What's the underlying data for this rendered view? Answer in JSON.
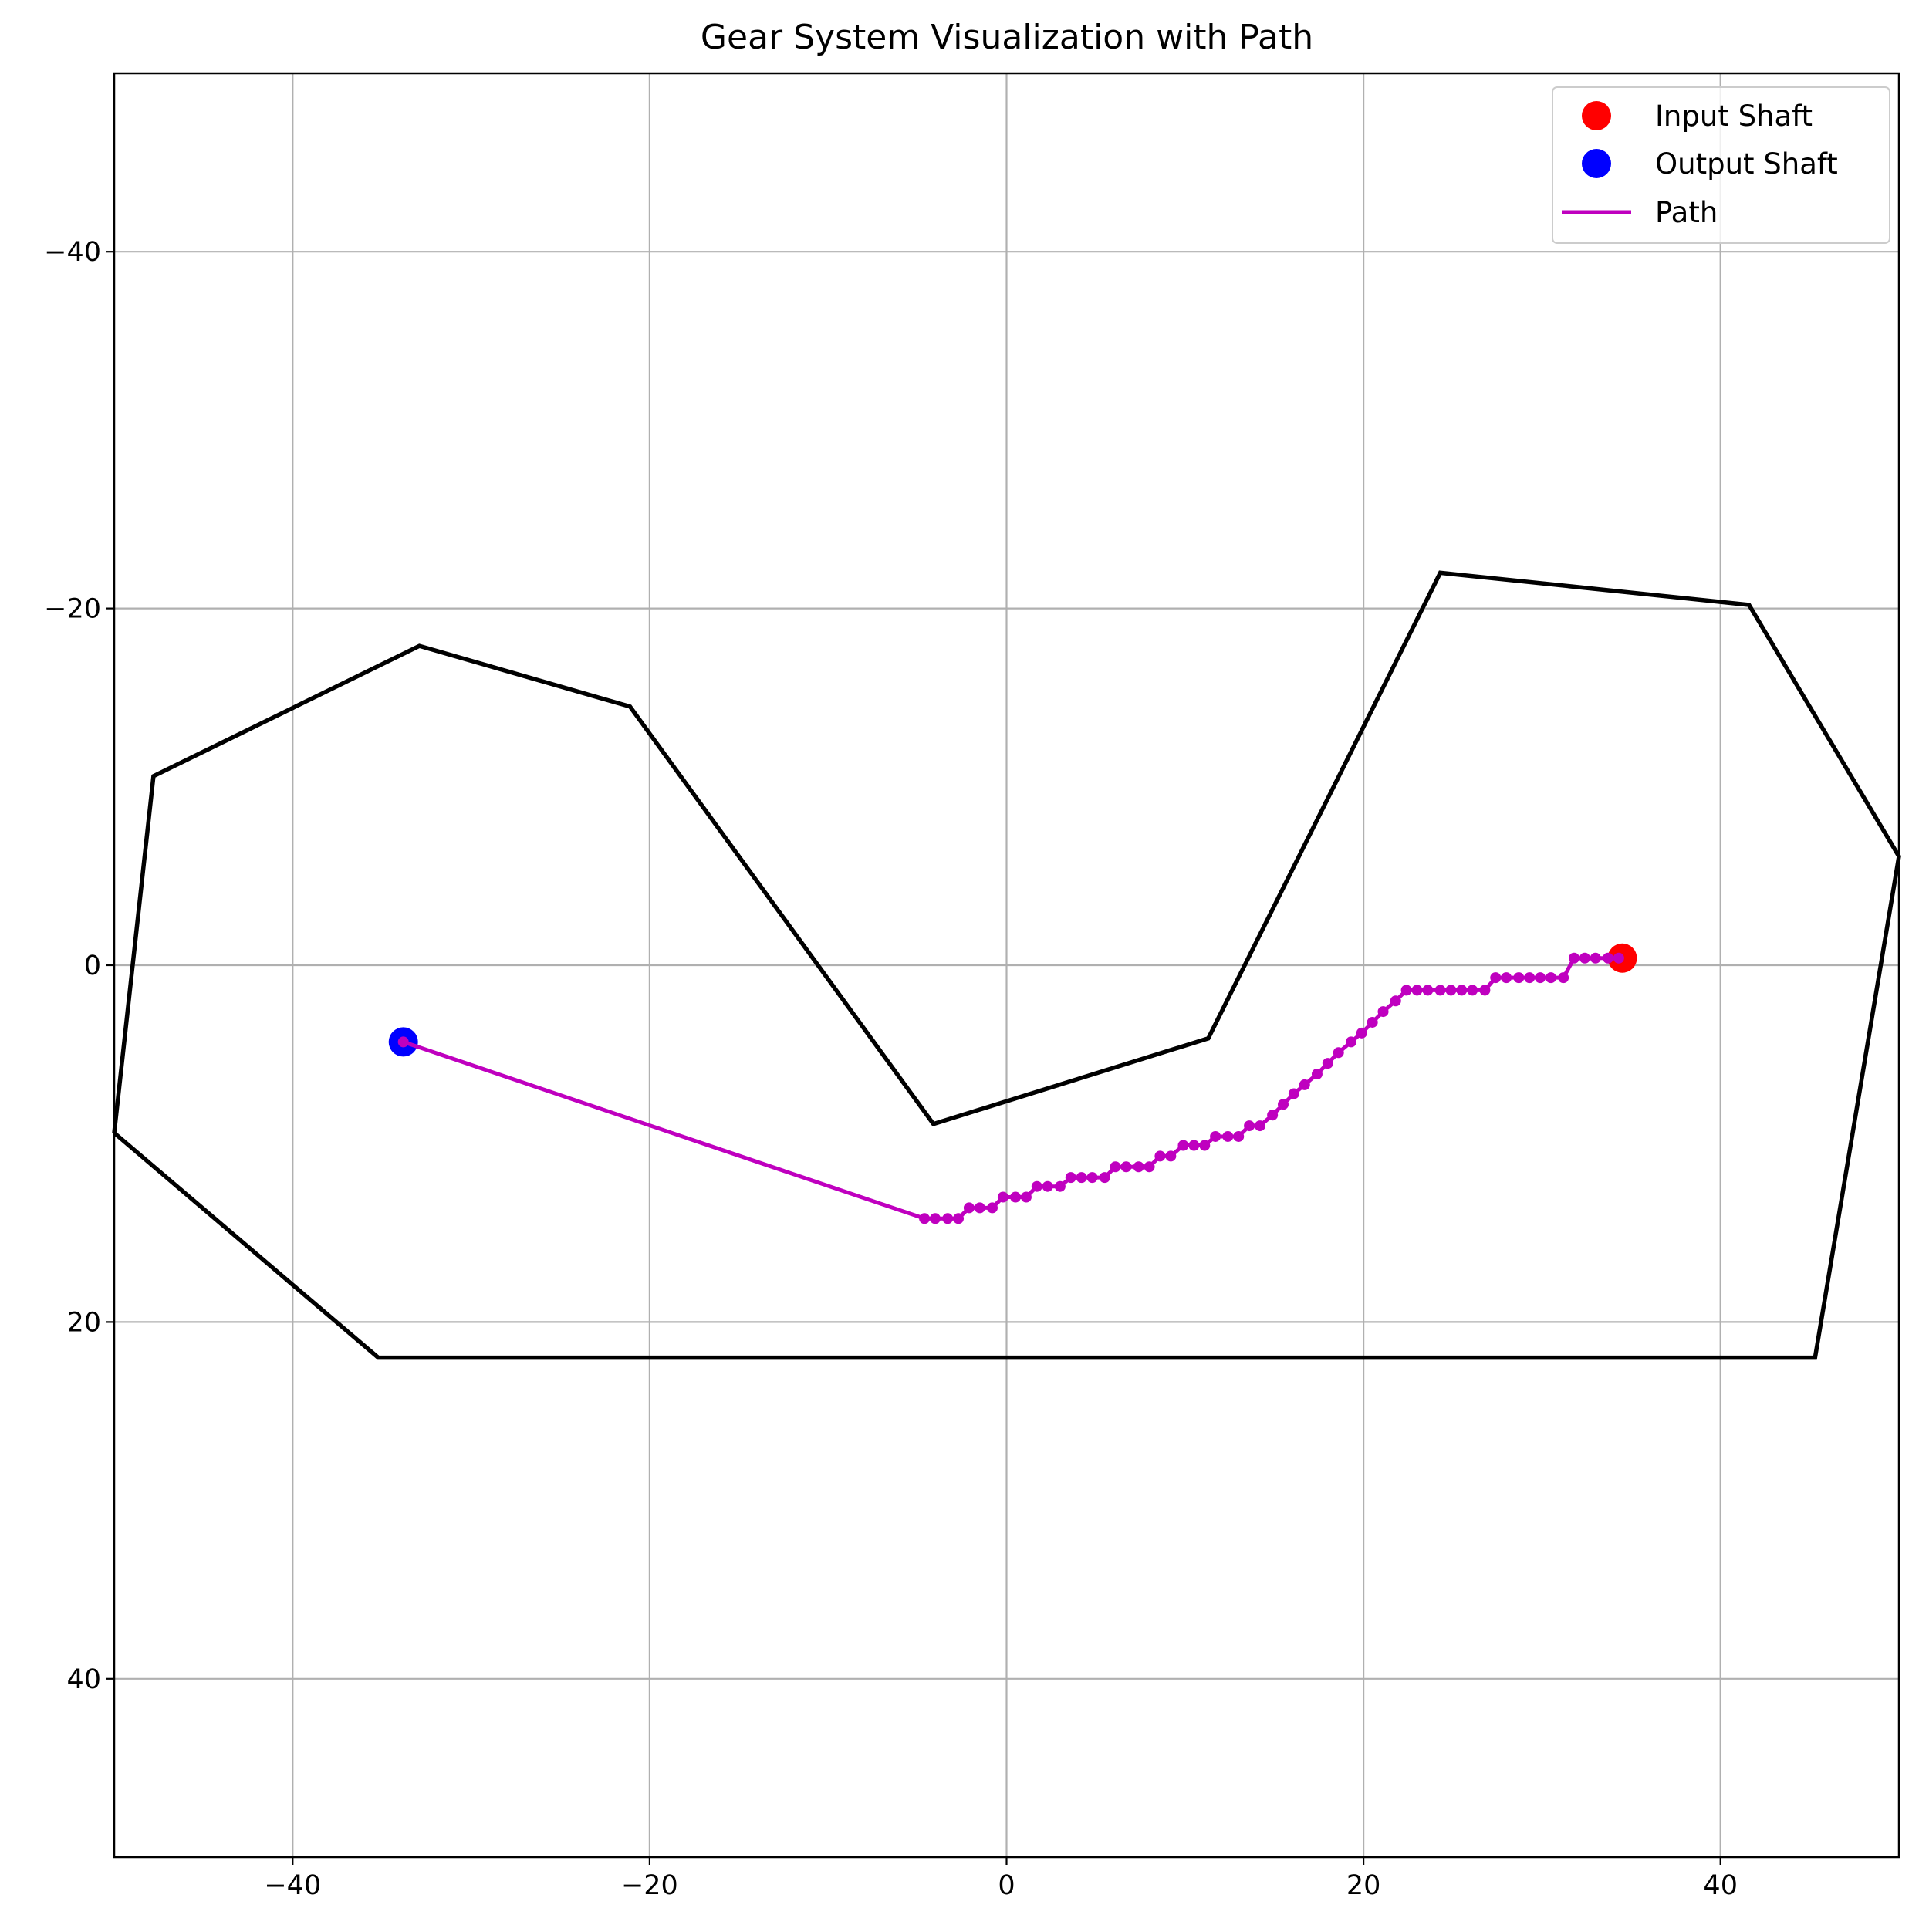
{
  "chart_data": {
    "type": "line",
    "title": "Gear System Visualization with Path",
    "xlabel": "",
    "ylabel": "",
    "xlim": [
      -50,
      50
    ],
    "ylim": [
      50,
      -50
    ],
    "y_axis_inverted": true,
    "grid": true,
    "legend_position": "top-right",
    "x_ticks": [
      -40,
      -20,
      0,
      20,
      40
    ],
    "y_ticks": [
      -40,
      -20,
      0,
      20,
      40
    ],
    "x_tick_labels": [
      "−40",
      "−20",
      "0",
      "20",
      "40"
    ],
    "y_tick_labels": [
      "−40",
      "−20",
      "0",
      "20",
      "40"
    ],
    "boundary": {
      "color": "#000000",
      "points": [
        [
          -50,
          9.4
        ],
        [
          -35.2,
          22
        ],
        [
          45.3,
          22
        ],
        [
          50,
          -6.1
        ],
        [
          41.6,
          -20.2
        ],
        [
          24.3,
          -22
        ],
        [
          11.3,
          4.1
        ],
        [
          -4.1,
          8.9
        ],
        [
          -21.1,
          -14.5
        ],
        [
          -32.9,
          -17.9
        ],
        [
          -47.8,
          -10.6
        ],
        [
          -50,
          9.4
        ]
      ]
    },
    "series": [
      {
        "name": "Input Shaft",
        "kind": "marker",
        "color": "#ff0000",
        "x": [
          34.5
        ],
        "y": [
          -0.4
        ]
      },
      {
        "name": "Output Shaft",
        "kind": "marker",
        "color": "#0000ff",
        "x": [
          -33.8
        ],
        "y": [
          4.3
        ]
      },
      {
        "name": "Path",
        "kind": "line",
        "color": "#bf00bf",
        "points": [
          [
            -33.8,
            4.3
          ],
          [
            -4.6,
            14.2
          ],
          [
            -4,
            14.2
          ],
          [
            -3.3,
            14.2
          ],
          [
            -2.7,
            14.2
          ],
          [
            -2.1,
            13.6
          ],
          [
            -1.5,
            13.6
          ],
          [
            -0.8,
            13.6
          ],
          [
            -0.2,
            13.0
          ],
          [
            0.5,
            13.0
          ],
          [
            1.1,
            13.0
          ],
          [
            1.7,
            12.4
          ],
          [
            2.3,
            12.4
          ],
          [
            3,
            12.4
          ],
          [
            3.6,
            11.9
          ],
          [
            4.2,
            11.9
          ],
          [
            4.8,
            11.9
          ],
          [
            5.5,
            11.9
          ],
          [
            6.1,
            11.3
          ],
          [
            6.7,
            11.3
          ],
          [
            7.4,
            11.3
          ],
          [
            8,
            11.3
          ],
          [
            8.6,
            10.7
          ],
          [
            9.2,
            10.7
          ],
          [
            9.9,
            10.1
          ],
          [
            10.5,
            10.1
          ],
          [
            11.1,
            10.1
          ],
          [
            11.7,
            9.6
          ],
          [
            12.4,
            9.6
          ],
          [
            13,
            9.6
          ],
          [
            13.6,
            9.0
          ],
          [
            14.2,
            9.0
          ],
          [
            14.9,
            8.4
          ],
          [
            15.5,
            7.8
          ],
          [
            16.1,
            7.2
          ],
          [
            16.7,
            6.7
          ],
          [
            17.4,
            6.1
          ],
          [
            18,
            5.5
          ],
          [
            18.6,
            4.9
          ],
          [
            19.3,
            4.3
          ],
          [
            19.9,
            3.8
          ],
          [
            20.5,
            3.2
          ],
          [
            21.1,
            2.6
          ],
          [
            21.8,
            2.0
          ],
          [
            22.4,
            1.4
          ],
          [
            23,
            1.4
          ],
          [
            23.6,
            1.4
          ],
          [
            24.3,
            1.4
          ],
          [
            24.9,
            1.4
          ],
          [
            25.5,
            1.4
          ],
          [
            26.1,
            1.4
          ],
          [
            26.8,
            1.4
          ],
          [
            27.4,
            0.7
          ],
          [
            28,
            0.7
          ],
          [
            28.7,
            0.7
          ],
          [
            29.3,
            0.7
          ],
          [
            29.9,
            0.7
          ],
          [
            30.5,
            0.7
          ],
          [
            31.2,
            0.7
          ],
          [
            31.8,
            -0.4
          ],
          [
            32.4,
            -0.4
          ],
          [
            33,
            -0.4
          ],
          [
            33.7,
            -0.4
          ],
          [
            34.3,
            -0.4
          ]
        ]
      }
    ]
  }
}
